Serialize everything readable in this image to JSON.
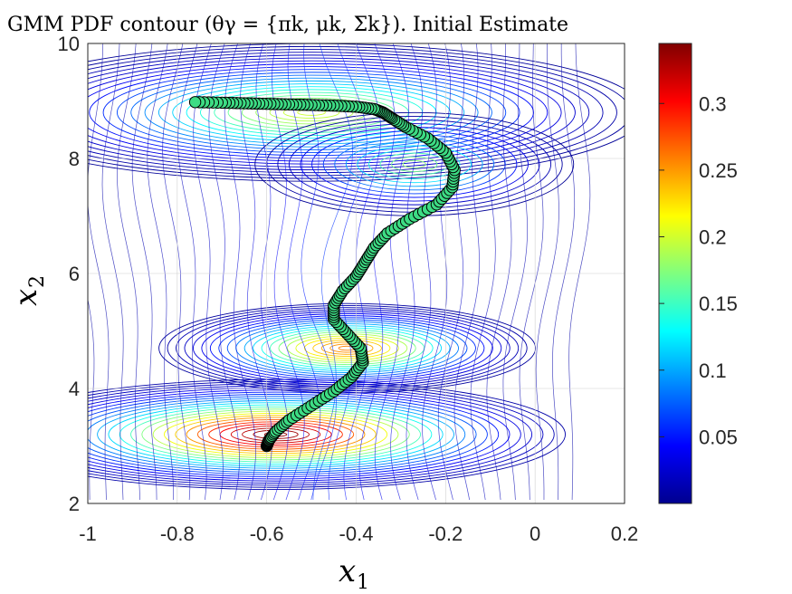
{
  "chart_data": {
    "type": "contour",
    "title": "GMM PDF contour (θγ = {πk, μk, Σk}). Initial Estimate",
    "xlabel": "x",
    "xlabel_sub": "1",
    "ylabel": "x",
    "ylabel_sub": "2",
    "xlim": [
      -1,
      0.2
    ],
    "ylim": [
      2,
      10
    ],
    "xticks": [
      "-1",
      "-0.8",
      "-0.6",
      "-0.4",
      "-0.2",
      "0",
      "0.2"
    ],
    "yticks": [
      "2",
      "4",
      "6",
      "8",
      "10"
    ],
    "grid": true,
    "colormap": "jet",
    "colorbar": {
      "range": [
        0,
        0.345
      ],
      "ticks": [
        "0.05",
        "0.1",
        "0.15",
        "0.2",
        "0.25",
        "0.3"
      ]
    },
    "components": [
      {
        "mean": [
          -0.58,
          3.2
        ],
        "weight": 0.34
      },
      {
        "mean": [
          -0.42,
          4.7
        ],
        "weight": 0.26
      },
      {
        "mean": [
          -0.5,
          8.8
        ],
        "weight": 0.2
      },
      {
        "mean": [
          -0.27,
          7.9
        ],
        "weight": 0.18
      }
    ],
    "trajectory": {
      "marker_face": "#3ddc84",
      "marker_edge": "#000000",
      "x": [
        -0.6,
        -0.595,
        -0.58,
        -0.55,
        -0.5,
        -0.45,
        -0.41,
        -0.385,
        -0.39,
        -0.42,
        -0.45,
        -0.45,
        -0.43,
        -0.4,
        -0.38,
        -0.36,
        -0.33,
        -0.28,
        -0.22,
        -0.185,
        -0.18,
        -0.2,
        -0.24,
        -0.29,
        -0.32,
        -0.34,
        -0.36,
        -0.4,
        -0.45,
        -0.5,
        -0.55,
        -0.6,
        -0.65,
        -0.7,
        -0.76
      ],
      "y": [
        3.0,
        3.1,
        3.25,
        3.45,
        3.7,
        3.95,
        4.2,
        4.45,
        4.7,
        4.95,
        5.2,
        5.45,
        5.7,
        5.95,
        6.2,
        6.45,
        6.7,
        6.95,
        7.2,
        7.5,
        7.8,
        8.1,
        8.35,
        8.55,
        8.7,
        8.8,
        8.86,
        8.9,
        8.92,
        8.93,
        8.94,
        8.95,
        8.96,
        8.97,
        8.98
      ]
    }
  }
}
